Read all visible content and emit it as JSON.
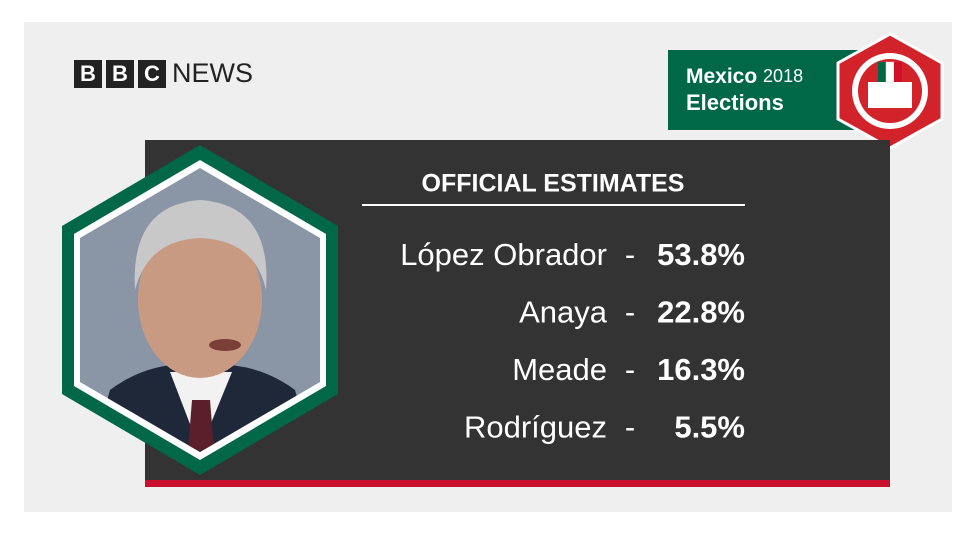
{
  "logo": {
    "letters": [
      "B",
      "B",
      "C"
    ],
    "word": "NEWS"
  },
  "badge": {
    "title": "Mexico",
    "year": "2018",
    "subtitle": "Elections"
  },
  "panel": {
    "heading": "OFFICIAL ESTIMATES",
    "separator": "-",
    "results": [
      {
        "name": "López Obrador",
        "share": "53.8%"
      },
      {
        "name": "Anaya",
        "share": "22.8%"
      },
      {
        "name": "Meade",
        "share": "16.3%"
      },
      {
        "name": "Rodríguez",
        "share": "5.5%"
      }
    ]
  }
}
